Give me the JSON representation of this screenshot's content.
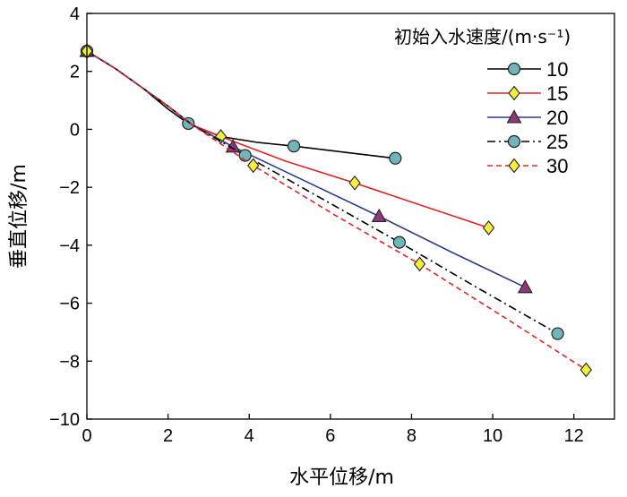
{
  "chart_data": {
    "type": "line",
    "title": "",
    "xlabel": "水平位移/m",
    "ylabel": "垂直位移/m",
    "xlim": [
      0,
      13
    ],
    "ylim": [
      -10,
      4
    ],
    "xticks": [
      0,
      2,
      4,
      6,
      8,
      10,
      12
    ],
    "yticks": [
      4,
      2,
      0,
      -2,
      -4,
      -6,
      -8,
      -10
    ],
    "xtick_labels": [
      "0",
      "2",
      "4",
      "6",
      "8",
      "10",
      "12"
    ],
    "ytick_labels": [
      "4",
      "2",
      "0",
      "−2",
      "−4",
      "−6",
      "−8",
      "−10"
    ],
    "legend_title": "初始入水速度/(m·s⁻¹)",
    "legend_position": "top-right",
    "series": [
      {
        "name": "10",
        "color": "#000000",
        "dash": "solid",
        "marker": "circle",
        "marker_fill": "#6fb5ba",
        "line": [
          [
            0,
            2.7
          ],
          [
            0.7,
            2.1
          ],
          [
            1.4,
            1.4
          ],
          [
            2.0,
            0.7
          ],
          [
            2.5,
            0.2
          ],
          [
            3.3,
            -0.25
          ],
          [
            4.2,
            -0.45
          ],
          [
            5.1,
            -0.58
          ],
          [
            6.4,
            -0.8
          ],
          [
            7.6,
            -1.0
          ]
        ],
        "markers": [
          [
            0,
            2.7
          ],
          [
            2.5,
            0.2
          ],
          [
            5.1,
            -0.58
          ],
          [
            7.6,
            -1.0
          ]
        ]
      },
      {
        "name": "15",
        "color": "#e0252a",
        "dash": "solid",
        "marker": "diamond",
        "marker_fill": "#f4ef3a",
        "line": [
          [
            0,
            2.7
          ],
          [
            0.7,
            2.1
          ],
          [
            1.4,
            1.4
          ],
          [
            2.0,
            0.8
          ],
          [
            2.6,
            0.15
          ],
          [
            3.3,
            -0.25
          ],
          [
            4.9,
            -1.1
          ],
          [
            6.6,
            -1.85
          ],
          [
            8.3,
            -2.65
          ],
          [
            9.9,
            -3.4
          ]
        ],
        "markers": [
          [
            0,
            2.7
          ],
          [
            3.3,
            -0.25
          ],
          [
            6.6,
            -1.85
          ],
          [
            9.9,
            -3.4
          ]
        ]
      },
      {
        "name": "20",
        "color": "#2a3b8f",
        "dash": "solid",
        "marker": "triangle",
        "marker_fill": "#8a3a78",
        "line": [
          [
            0,
            2.7
          ],
          [
            0.7,
            2.1
          ],
          [
            1.4,
            1.4
          ],
          [
            2.0,
            0.8
          ],
          [
            2.6,
            0.15
          ],
          [
            3.6,
            -0.6
          ],
          [
            5.4,
            -1.8
          ],
          [
            7.2,
            -3.0
          ],
          [
            9.0,
            -4.25
          ],
          [
            10.8,
            -5.45
          ]
        ],
        "markers": [
          [
            0,
            2.7
          ],
          [
            3.6,
            -0.6
          ],
          [
            7.2,
            -3.0
          ],
          [
            10.8,
            -5.45
          ]
        ]
      },
      {
        "name": "25",
        "color": "#000000",
        "dash": "dashdot",
        "marker": "circle",
        "marker_fill": "#6fb5ba",
        "line": [
          [
            0,
            2.7
          ],
          [
            0.7,
            2.1
          ],
          [
            1.4,
            1.4
          ],
          [
            2.0,
            0.8
          ],
          [
            2.6,
            0.15
          ],
          [
            3.9,
            -0.9
          ],
          [
            5.8,
            -2.4
          ],
          [
            7.7,
            -3.9
          ],
          [
            9.6,
            -5.45
          ],
          [
            11.6,
            -7.05
          ]
        ],
        "markers": [
          [
            0,
            2.7
          ],
          [
            3.9,
            -0.9
          ],
          [
            7.7,
            -3.9
          ],
          [
            11.6,
            -7.05
          ]
        ]
      },
      {
        "name": "30",
        "color": "#e0252a",
        "dash": "dashed",
        "marker": "diamond",
        "marker_fill": "#f4ef3a",
        "line": [
          [
            0,
            2.7
          ],
          [
            0.7,
            2.1
          ],
          [
            1.4,
            1.4
          ],
          [
            2.0,
            0.8
          ],
          [
            2.6,
            0.15
          ],
          [
            4.1,
            -1.25
          ],
          [
            6.1,
            -2.95
          ],
          [
            8.2,
            -4.65
          ],
          [
            10.3,
            -6.5
          ],
          [
            12.3,
            -8.3
          ]
        ],
        "markers": [
          [
            0,
            2.7
          ],
          [
            4.1,
            -1.25
          ],
          [
            8.2,
            -4.65
          ],
          [
            12.3,
            -8.3
          ]
        ]
      }
    ]
  }
}
